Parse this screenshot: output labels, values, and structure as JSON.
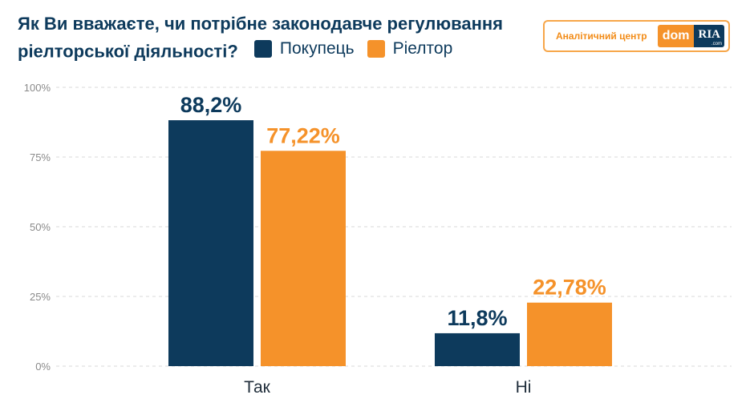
{
  "header": {
    "title_line1": "Як Ви вважаєте, чи потрібне законодавче регулювання",
    "title_line2": "ріелторської діяльності?"
  },
  "brand": {
    "caption": "Аналітичний центр",
    "logo_dom": "dom",
    "logo_ria": "RIA",
    "logo_suffix": ".com"
  },
  "colors": {
    "buyer": "#0d3a5c",
    "realtor": "#f5922a",
    "grid": "#d9d9d9"
  },
  "chart_data": {
    "type": "bar",
    "title": "Як Ви вважаєте, чи потрібне законодавче регулювання ріелторської діяльності?",
    "categories": [
      "Так",
      "Ні"
    ],
    "series": [
      {
        "name": "Покупець",
        "values": [
          88.2,
          11.8
        ],
        "labels": [
          "88,2%",
          "11,8%"
        ]
      },
      {
        "name": "Ріелтор",
        "values": [
          77.22,
          22.78
        ],
        "labels": [
          "77,22%",
          "22,78%"
        ]
      }
    ],
    "yticks": [
      "0%",
      "25%",
      "50%",
      "75%",
      "100%"
    ],
    "ylim": [
      0,
      100
    ],
    "grid": true,
    "legend_position": "top"
  }
}
